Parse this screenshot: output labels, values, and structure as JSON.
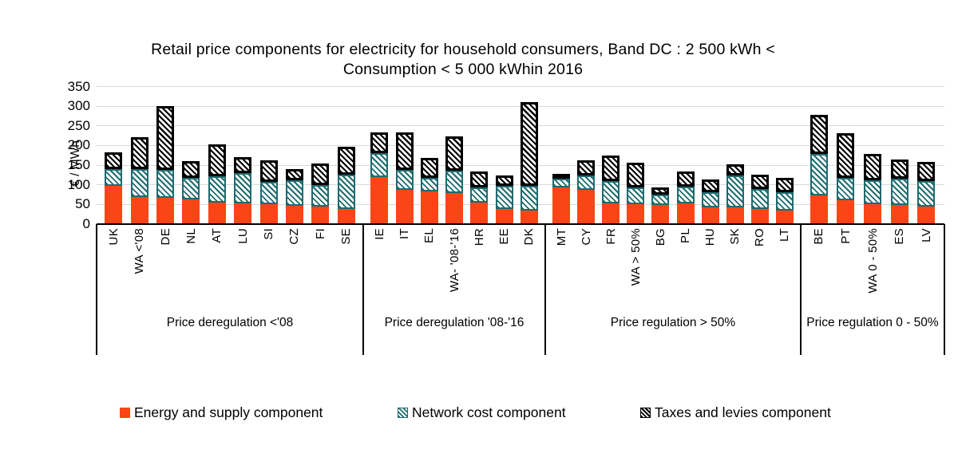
{
  "title": {
    "line1": "Retail price components for electricity for household consumers, Band DC : 2 500 kWh <",
    "line2": "Consumption < 5 000 kWhin 2016"
  },
  "chart_data": {
    "type": "bar",
    "stacked": true,
    "title": "Retail price components for electricity for household consumers, Band DC : 2 500 kWh < Consumption < 5 000 kWhin 2016",
    "xlabel": "",
    "ylabel": "€ / MWh",
    "ylim": [
      0,
      350
    ],
    "yticks": [
      0,
      50,
      100,
      150,
      200,
      250,
      300,
      350
    ],
    "grid": true,
    "legend_position": "bottom",
    "series_names": [
      "Energy and supply component",
      "Network cost component",
      "Taxes and levies component"
    ],
    "groups": [
      {
        "label": "Price deregulation <'08",
        "bars": [
          {
            "label": "UK",
            "values": [
              97,
              42,
              44
            ]
          },
          {
            "label": "WA <'08",
            "values": [
              68,
              71,
              82
            ]
          },
          {
            "label": "DE",
            "values": [
              67,
              70,
              163
            ]
          },
          {
            "label": "NL",
            "values": [
              63,
              55,
              43
            ]
          },
          {
            "label": "AT",
            "values": [
              55,
              66,
              81
            ]
          },
          {
            "label": "LU",
            "values": [
              53,
              76,
              41
            ]
          },
          {
            "label": "SI",
            "values": [
              51,
              57,
              55
            ]
          },
          {
            "label": "CZ",
            "values": [
              47,
              65,
              29
            ]
          },
          {
            "label": "FI",
            "values": [
              45,
              55,
              55
            ]
          },
          {
            "label": "SE",
            "values": [
              39,
              87,
              70
            ]
          }
        ]
      },
      {
        "label": "Price deregulation '08-'16",
        "bars": [
          {
            "label": "IE",
            "values": [
              119,
              62,
              53
            ]
          },
          {
            "label": "IT",
            "values": [
              88,
              49,
              97
            ]
          },
          {
            "label": "EL",
            "values": [
              83,
              34,
              52
            ]
          },
          {
            "label": "WA- '08-'16",
            "values": [
              80,
              55,
              88
            ]
          },
          {
            "label": "HR",
            "values": [
              55,
              38,
              41
            ]
          },
          {
            "label": "EE",
            "values": [
              39,
              58,
              27
            ]
          },
          {
            "label": "DK",
            "values": [
              34,
              64,
              212
            ]
          }
        ]
      },
      {
        "label": "Price regulation > 50%",
        "bars": [
          {
            "label": "MT",
            "values": [
              93,
              22,
              12
            ]
          },
          {
            "label": "CY",
            "values": [
              88,
              36,
              39
            ]
          },
          {
            "label": "FR",
            "values": [
              53,
              56,
              66
            ]
          },
          {
            "label": "WA > 50%",
            "values": [
              51,
              43,
              63
            ]
          },
          {
            "label": "BG",
            "values": [
              48,
              27,
              18
            ]
          },
          {
            "label": "PL",
            "values": [
              53,
              43,
              38
            ]
          },
          {
            "label": "HU",
            "values": [
              42,
              39,
              32
            ]
          },
          {
            "label": "SK",
            "values": [
              42,
              81,
              29
            ]
          },
          {
            "label": "RO",
            "values": [
              38,
              51,
              36
            ]
          },
          {
            "label": "LT",
            "values": [
              34,
              48,
              36
            ]
          }
        ]
      },
      {
        "label": "Price regulation 0 - 50%",
        "bars": [
          {
            "label": "BE",
            "values": [
              72,
              106,
              99
            ]
          },
          {
            "label": "PT",
            "values": [
              61,
              57,
              114
            ]
          },
          {
            "label": "WA 0 - 50%",
            "values": [
              51,
              60,
              67
            ]
          },
          {
            "label": "ES",
            "values": [
              48,
              68,
              48
            ]
          },
          {
            "label": "LV",
            "values": [
              44,
              65,
              50
            ]
          }
        ]
      }
    ]
  },
  "legend": {
    "items": [
      {
        "label": "Energy and supply component"
      },
      {
        "label": "Network cost component"
      },
      {
        "label": "Taxes and levies component"
      }
    ]
  },
  "colors": {
    "energy": "#fa4616",
    "network": "#1e6b70",
    "taxes": "#000000",
    "gridline": "#d9d9d9"
  }
}
